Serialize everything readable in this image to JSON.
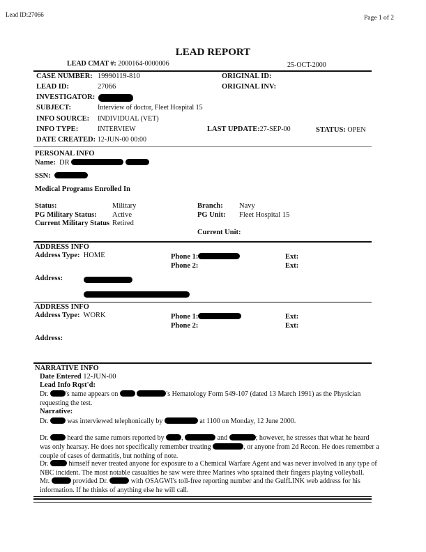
{
  "header": {
    "lead_id": "Lead ID:27066",
    "page": "Page  1 of  2"
  },
  "title": "LEAD REPORT",
  "cmat_label": "LEAD CMAT #:",
  "cmat": "2000164-0000006",
  "report_date": "25-OCT-2000",
  "case": {
    "case_number_label": "CASE NUMBER:",
    "case_number": "19990119-810",
    "lead_id_label": "LEAD ID:",
    "lead_id": "27066",
    "investigator_label": "INVESTIGATOR:",
    "subject_label": "SUBJECT:",
    "subject": "Interview of doctor, Fleet Hospital 15",
    "info_source_label": "INFO SOURCE:",
    "info_source": "INDIVIDUAL (VET)",
    "info_type_label": "INFO TYPE:",
    "info_type": "INTERVIEW",
    "date_created_label": "DATE CREATED:",
    "date_created": "12-JUN-00 00:00",
    "original_id_label": "ORIGINAL ID:",
    "original_inv_label": "ORIGINAL INV:",
    "last_update_label": "LAST UPDATE:",
    "last_update": "27-SEP-00",
    "status_label": "STATUS:",
    "status": "OPEN"
  },
  "personal": {
    "heading": "PERSONAL INFO",
    "name_label": "Name:",
    "name_prefix": "DR",
    "ssn_label": "SSN:",
    "programs_label": "Medical Programs Enrolled In",
    "status_label": "Status:",
    "status": "Military",
    "pg_status_label": "PG Military Status:",
    "pg_status": "Active",
    "current_status_label": "Current Military Status",
    "current_status": "Retired",
    "branch_label": "Branch:",
    "branch": "Navy",
    "pg_unit_label": "PG Unit:",
    "pg_unit": "Fleet Hospital 15",
    "current_unit_label": "Current Unit:"
  },
  "address_home": {
    "heading": "ADDRESS INFO",
    "type_label": "Address Type:",
    "type": "HOME",
    "phone1_label": "Phone 1:",
    "phone2_label": "Phone 2:",
    "ext_label": "Ext:",
    "address_label": "Address:"
  },
  "address_work": {
    "heading": "ADDRESS INFO",
    "type_label": "Address Type:",
    "type": "WORK",
    "phone1_label": "Phone 1:",
    "phone2_label": "Phone 2:",
    "ext_label": "Ext:",
    "address_label": "Address:"
  },
  "narrative": {
    "heading": "NARRATIVE INFO",
    "date_entered_label": "Date Entered",
    "date_entered": "12-JUN-00",
    "rqst_label": "Lead Info Rqst'd:",
    "rqst": [
      "Dr. ",
      "'s name appears on ",
      "'s Hematology Form 549-107 (dated 13 March 1991) as the Physician requesting the test."
    ],
    "narrative_label": "Narrative:",
    "p1": [
      "Dr. ",
      " was interviewed telephonically by ",
      " at 1100 on Monday, 12 June 2000."
    ],
    "p2": [
      "Dr. ",
      " heard the same rumors reported by ",
      ", ",
      " and ",
      "; however, he stresses that what he heard was only hearsay.  He does not specifically remember treating ",
      ", or anyone from 2d Recon.  He does remember a couple of cases of dermatitis, but nothing of note."
    ],
    "p3": [
      "Dr. ",
      " himself never treated anyone for exposure to a Chemical Warfare Agent and was never involved in any type of NBC incident.  The most notable casualties he saw were three Marines who sprained their fingers playing volleyball."
    ],
    "p4": [
      "Mr. ",
      " provided Dr. ",
      " with OSAGWI's toll-free reporting number and the GulfLINK web address for his information.  If he thinks of anything else he will call."
    ]
  }
}
